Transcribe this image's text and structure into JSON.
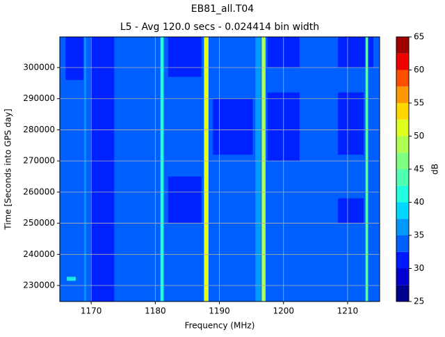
{
  "chart_data": {
    "type": "heatmap",
    "title": "EB81_all.T04",
    "subtitle": "L5 - Avg 120.0 secs - 0.024414 bin width",
    "x_label": "Frequency (MHz)",
    "y_label": "Time [Seconds into GPS day]",
    "xlim": [
      1165.1,
      1215
    ],
    "ylim": [
      224860,
      309840
    ],
    "xticks": [
      1170,
      1180,
      1190,
      1200,
      1210
    ],
    "yticks": [
      230000,
      240000,
      250000,
      260000,
      270000,
      280000,
      290000,
      300000
    ],
    "grid": true,
    "background": 33.5,
    "patches": [
      {
        "x0": 1169.9,
        "x1": 1173.6,
        "y0": 224860,
        "y1": 309840,
        "value": 31
      },
      {
        "x0": 1166,
        "x1": 1168.8,
        "y0": 296000,
        "y1": 309840,
        "value": 31
      },
      {
        "x0": 1182,
        "x1": 1187.2,
        "y0": 297000,
        "y1": 309840,
        "value": 31
      },
      {
        "x0": 1182,
        "x1": 1187.2,
        "y0": 250000,
        "y1": 265000,
        "value": 31
      },
      {
        "x0": 1189,
        "x1": 1195.2,
        "y0": 272000,
        "y1": 290000,
        "value": 31
      },
      {
        "x0": 1197.5,
        "x1": 1202.5,
        "y0": 270000,
        "y1": 292000,
        "value": 31
      },
      {
        "x0": 1197.5,
        "x1": 1202.5,
        "y0": 300000,
        "y1": 309840,
        "value": 31
      },
      {
        "x0": 1208.5,
        "x1": 1212.5,
        "y0": 272000,
        "y1": 292000,
        "value": 31
      },
      {
        "x0": 1208.5,
        "x1": 1212.5,
        "y0": 250000,
        "y1": 258000,
        "value": 31
      },
      {
        "x0": 1208.5,
        "x1": 1214,
        "y0": 300000,
        "y1": 309840,
        "value": 31
      },
      {
        "x0": 1166.2,
        "x1": 1167.6,
        "y0": 231500,
        "y1": 232800,
        "value": 40
      }
    ],
    "stripes": [
      {
        "x0": 1168.9,
        "x1": 1169.2,
        "value": 37
      },
      {
        "x0": 1180.8,
        "x1": 1181.3,
        "value": 41
      },
      {
        "x0": 1187.6,
        "x1": 1188.3,
        "value": 51
      },
      {
        "x0": 1195.6,
        "x1": 1196.5,
        "value": 36
      },
      {
        "x0": 1196.6,
        "x1": 1197.2,
        "value": 48
      },
      {
        "x0": 1212.8,
        "x1": 1213.2,
        "value": 43
      }
    ],
    "colorbar": {
      "label": "dB",
      "levels": [
        25,
        27.5,
        30,
        32.5,
        35,
        37.5,
        40,
        42.5,
        45,
        47.5,
        50,
        52.5,
        55,
        57.5,
        60,
        62.5,
        65
      ],
      "colors": [
        "#00008f",
        "#0000d0",
        "#0018ff",
        "#0060ff",
        "#0098ff",
        "#00d8ff",
        "#20ffe0",
        "#50ffb0",
        "#80ff80",
        "#b0ff50",
        "#e0ff20",
        "#ffd800",
        "#ff9800",
        "#ff5000",
        "#f00000",
        "#a00000"
      ],
      "ticks": [
        25,
        30,
        35,
        40,
        45,
        50,
        55,
        60,
        65
      ]
    }
  }
}
